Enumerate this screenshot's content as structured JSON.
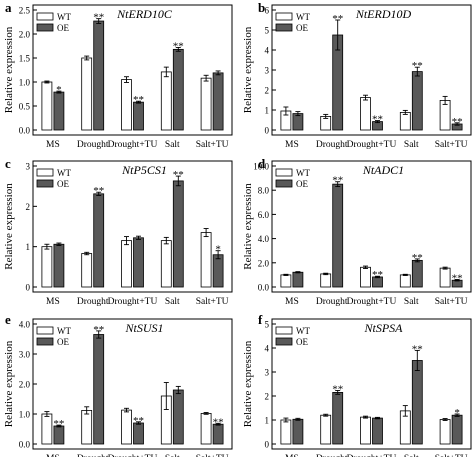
{
  "figure": {
    "ylabel": "Relative expression",
    "categories": [
      "MS",
      "Drought",
      "Drought+TU",
      "Salt",
      "Salt+TU"
    ],
    "legend": [
      "WT",
      "OE"
    ],
    "colors": {
      "wt": "#ffffff",
      "oe": "#595959",
      "stroke": "#000000"
    }
  },
  "chart_data": [
    {
      "type": "bar",
      "panel": "a",
      "title": "NtERD10C",
      "categories": [
        "MS",
        "Drought",
        "Drought+TU",
        "Salt",
        "Salt+TU"
      ],
      "ylim": [
        0,
        2.5
      ],
      "yticks": [
        0.0,
        0.5,
        1.0,
        1.5,
        2.0,
        2.5
      ],
      "tick_decimals": 1,
      "series": [
        {
          "name": "WT",
          "values": [
            1.0,
            1.5,
            1.05,
            1.21,
            1.08
          ],
          "errors": [
            0.02,
            0.04,
            0.06,
            0.1,
            0.06
          ],
          "stars": [
            "",
            "",
            "",
            "",
            ""
          ]
        },
        {
          "name": "OE",
          "values": [
            0.79,
            2.27,
            0.58,
            1.68,
            1.19
          ],
          "errors": [
            0.02,
            0.05,
            0.02,
            0.04,
            0.04
          ],
          "stars": [
            "*",
            "**",
            "**",
            "**",
            ""
          ]
        }
      ]
    },
    {
      "type": "bar",
      "panel": "b",
      "title": "NtERD10D",
      "categories": [
        "MS",
        "Drought",
        "Drought+TU",
        "Salt",
        "Salt+TU"
      ],
      "ylim": [
        0,
        6
      ],
      "yticks": [
        0,
        1,
        2,
        3,
        4,
        5,
        6
      ],
      "tick_decimals": 0,
      "series": [
        {
          "name": "WT",
          "values": [
            0.95,
            0.68,
            1.62,
            0.88,
            1.48
          ],
          "errors": [
            0.2,
            0.1,
            0.12,
            0.1,
            0.2
          ],
          "stars": [
            "",
            "",
            "",
            "",
            ""
          ]
        },
        {
          "name": "OE",
          "values": [
            0.82,
            4.75,
            0.42,
            2.92,
            0.3
          ],
          "errors": [
            0.1,
            0.75,
            0.05,
            0.22,
            0.06
          ],
          "stars": [
            "",
            "**",
            "**",
            "**",
            "**"
          ]
        }
      ]
    },
    {
      "type": "bar",
      "panel": "c",
      "title": "NtP5CS1",
      "categories": [
        "MS",
        "Drought",
        "Drought+TU",
        "Salt",
        "Salt+TU"
      ],
      "ylim": [
        0,
        3.0
      ],
      "yticks": [
        0,
        1,
        2,
        3
      ],
      "tick_decimals": 0,
      "series": [
        {
          "name": "WT",
          "values": [
            1.0,
            0.83,
            1.15,
            1.15,
            1.35
          ],
          "errors": [
            0.06,
            0.03,
            0.1,
            0.08,
            0.1
          ],
          "stars": [
            "",
            "",
            "",
            "",
            ""
          ]
        },
        {
          "name": "OE",
          "values": [
            1.06,
            2.31,
            1.22,
            2.63,
            0.8
          ],
          "errors": [
            0.03,
            0.04,
            0.04,
            0.12,
            0.1
          ],
          "stars": [
            "",
            "**",
            "",
            "**",
            "*"
          ]
        }
      ]
    },
    {
      "type": "bar",
      "panel": "d",
      "title": "NtADC1",
      "categories": [
        "MS",
        "Drought",
        "Drought+TU",
        "Salt",
        "Salt+TU"
      ],
      "ylim": [
        0,
        10.0
      ],
      "yticks": [
        0.0,
        2.0,
        4.0,
        6.0,
        8.0,
        10.0
      ],
      "tick_decimals": 1,
      "series": [
        {
          "name": "WT",
          "values": [
            1.0,
            1.08,
            1.63,
            1.0,
            1.56
          ],
          "errors": [
            0.05,
            0.06,
            0.1,
            0.05,
            0.08
          ],
          "stars": [
            "",
            "",
            "",
            "",
            ""
          ]
        },
        {
          "name": "OE",
          "values": [
            1.22,
            8.5,
            0.83,
            2.2,
            0.56
          ],
          "errors": [
            0.05,
            0.2,
            0.06,
            0.12,
            0.06
          ],
          "stars": [
            "",
            "**",
            "**",
            "**",
            "**"
          ]
        }
      ]
    },
    {
      "type": "bar",
      "panel": "e",
      "title": "NtSUS1",
      "categories": [
        "MS",
        "Drought",
        "Drought+TU",
        "Salt",
        "Salt+TU"
      ],
      "ylim": [
        0,
        4.0
      ],
      "yticks": [
        0.0,
        1.0,
        2.0,
        3.0,
        4.0
      ],
      "tick_decimals": 1,
      "series": [
        {
          "name": "WT",
          "values": [
            1.0,
            1.12,
            1.13,
            1.6,
            1.02
          ],
          "errors": [
            0.08,
            0.12,
            0.06,
            0.45,
            0.03
          ],
          "stars": [
            "",
            "",
            "",
            "",
            ""
          ]
        },
        {
          "name": "OE",
          "values": [
            0.6,
            3.65,
            0.7,
            1.8,
            0.66
          ],
          "errors": [
            0.03,
            0.12,
            0.04,
            0.12,
            0.03
          ],
          "stars": [
            "**",
            "**",
            "**",
            "",
            "**"
          ]
        }
      ]
    },
    {
      "type": "bar",
      "panel": "f",
      "title": "NtSPSA",
      "categories": [
        "MS",
        "Drought",
        "Drought+TU",
        "Salt",
        "Salt+TU"
      ],
      "ylim": [
        0,
        5
      ],
      "yticks": [
        0,
        1,
        2,
        3,
        4,
        5
      ],
      "tick_decimals": 0,
      "series": [
        {
          "name": "WT",
          "values": [
            1.0,
            1.2,
            1.12,
            1.38,
            1.02
          ],
          "errors": [
            0.08,
            0.04,
            0.04,
            0.22,
            0.04
          ],
          "stars": [
            "",
            "",
            "",
            "",
            ""
          ]
        },
        {
          "name": "OE",
          "values": [
            1.03,
            2.15,
            1.08,
            3.48,
            1.2
          ],
          "errors": [
            0.04,
            0.08,
            0.03,
            0.42,
            0.05
          ],
          "stars": [
            "",
            "**",
            "",
            "**",
            "*"
          ]
        }
      ]
    }
  ]
}
